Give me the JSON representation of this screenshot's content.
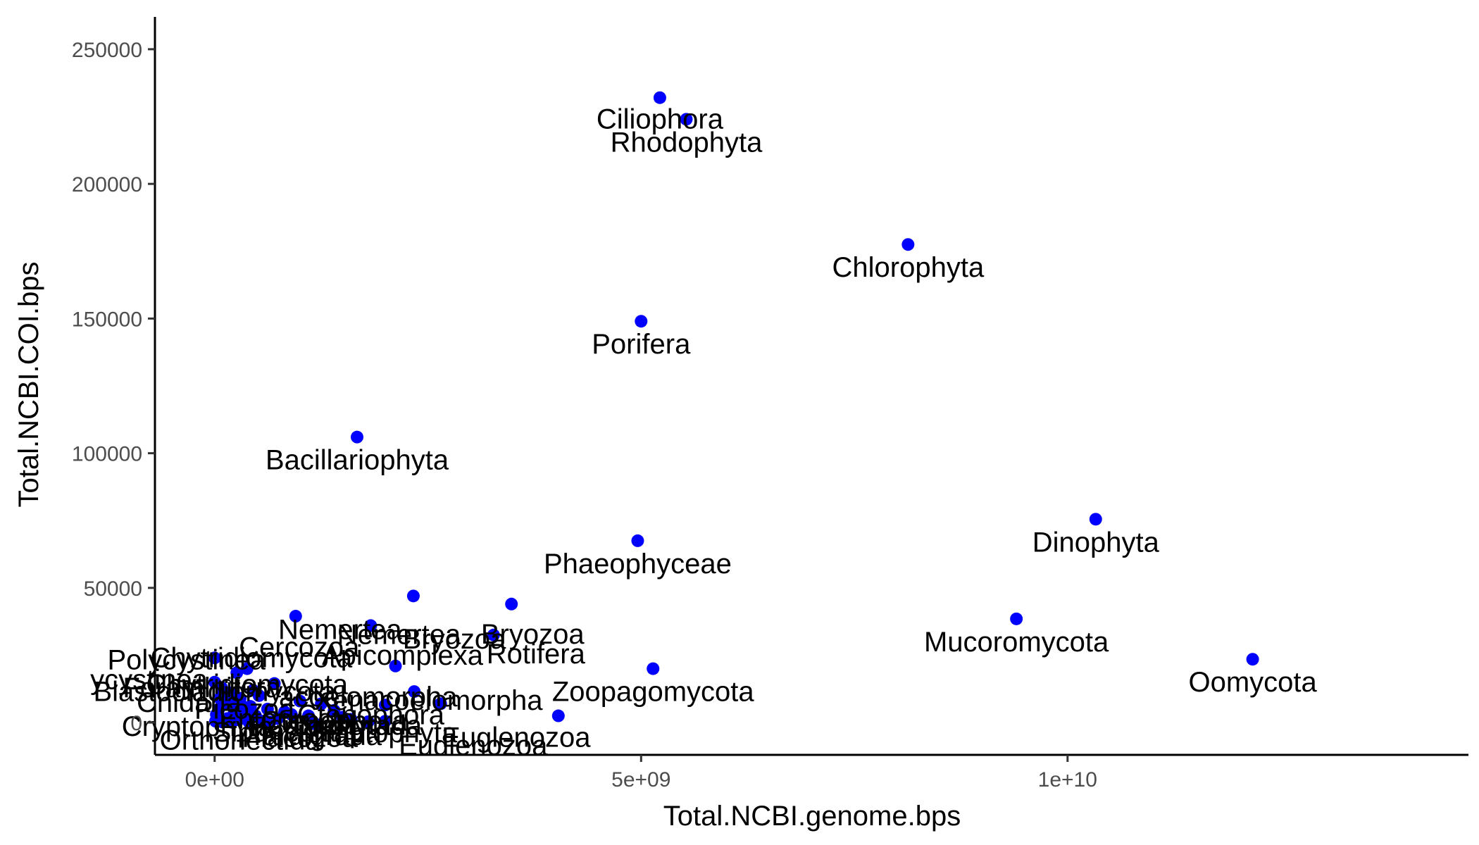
{
  "chart_data": {
    "type": "scatter",
    "title": "",
    "xlabel": "Total.NCBI.genome.bps",
    "ylabel": "Total.NCBI.COI.bps",
    "xlim": [
      -700000000,
      14700000000
    ],
    "ylim": [
      -12000,
      262000
    ],
    "x_ticks": [
      0,
      5000000000,
      10000000000
    ],
    "x_tick_labels": [
      "0e+00",
      "5e+09",
      "1e+10"
    ],
    "y_ticks": [
      0,
      50000,
      100000,
      150000,
      200000,
      250000
    ],
    "y_tick_labels": [
      "0",
      "50000",
      "100000",
      "150000",
      "200000",
      "250000"
    ],
    "grid": false,
    "legend": "none",
    "point_color": "#0000ff",
    "labeled_points": [
      {
        "label": "Ciliophora",
        "x": 5220000000,
        "y": 232000
      },
      {
        "label": "Rhodophyta",
        "x": 5530000000,
        "y": 224000
      },
      {
        "label": "Chlorophyta",
        "x": 8130000000,
        "y": 177500
      },
      {
        "label": "Porifera",
        "x": 5000000000,
        "y": 149000
      },
      {
        "label": "Bacillariophyta",
        "x": 1670000000,
        "y": 106000
      },
      {
        "label": "Dinophyta",
        "x": 10330000000,
        "y": 75500
      },
      {
        "label": "Phaeophyceae",
        "x": 4960000000,
        "y": 67500
      },
      {
        "label": "Mucoromycota",
        "x": 9400000000,
        "y": 38500
      },
      {
        "label": "Bryozoa",
        "x": 3480000000,
        "y": 44000
      },
      {
        "label": "Nemertea",
        "x": 1830000000,
        "y": 36000
      },
      {
        "label": "Rotifera",
        "x": 3270000000,
        "y": 32500
      },
      {
        "label": "Oomycota",
        "x": 12170000000,
        "y": 23500
      },
      {
        "label": "Zoopagomycota",
        "x": 5140000000,
        "y": 20000
      },
      {
        "label": "Cercozoa",
        "x": 0,
        "y": 24000
      },
      {
        "label": "Apicomplexa",
        "x": 2120000000,
        "y": 21000
      },
      {
        "label": "Chytridiomycota",
        "x": 380000000,
        "y": 20000
      },
      {
        "label": "Xenacoelomorpha",
        "x": 2340000000,
        "y": 11500
      },
      {
        "label": "Euglenozoa",
        "x": 4030000000,
        "y": 2500
      },
      {
        "label": "Ctenophora",
        "x": 1500000000,
        "y": 2000
      },
      {
        "label": "Polycystinea",
        "x": 0,
        "y": 15000
      },
      {
        "label": "Tardigrada",
        "x": 1180000000,
        "y": -500
      },
      {
        "label": "Haptophyta",
        "x": 2000000000,
        "y": 500
      }
    ],
    "extra_points": [
      {
        "x": 950000000,
        "y": 39500
      },
      {
        "x": 2330000000,
        "y": 47000
      },
      {
        "x": 260000000,
        "y": 18500
      },
      {
        "x": 700000000,
        "y": 14500
      },
      {
        "x": 2650000000,
        "y": 7000
      },
      {
        "x": 2000000000,
        "y": 6500
      },
      {
        "x": 80000000,
        "y": 13000
      },
      {
        "x": 180000000,
        "y": 11000
      },
      {
        "x": 300000000,
        "y": 9000
      },
      {
        "x": 520000000,
        "y": 10000
      },
      {
        "x": 1000000000,
        "y": 8000
      },
      {
        "x": 1250000000,
        "y": 7000
      },
      {
        "x": 120000000,
        "y": 7000
      },
      {
        "x": 420000000,
        "y": 6000
      },
      {
        "x": 620000000,
        "y": 5000
      },
      {
        "x": 820000000,
        "y": 4000
      },
      {
        "x": 50000000,
        "y": 5000
      },
      {
        "x": 230000000,
        "y": 4000
      },
      {
        "x": 360000000,
        "y": 3000
      },
      {
        "x": 480000000,
        "y": 2500
      },
      {
        "x": 900000000,
        "y": 3000
      },
      {
        "x": 1400000000,
        "y": 4500
      },
      {
        "x": 30000000,
        "y": 2000
      },
      {
        "x": 150000000,
        "y": 1500
      },
      {
        "x": 280000000,
        "y": 1000
      },
      {
        "x": 560000000,
        "y": 500
      },
      {
        "x": 740000000,
        "y": 1500
      },
      {
        "x": 1100000000,
        "y": 2500
      },
      {
        "x": 10000000,
        "y": 500
      },
      {
        "x": 90000000,
        "y": 200
      },
      {
        "x": 200000000,
        "y": 100
      },
      {
        "x": 400000000,
        "y": 300
      },
      {
        "x": 650000000,
        "y": 200
      },
      {
        "x": 1600000000,
        "y": 1200
      },
      {
        "x": 1800000000,
        "y": 300
      },
      {
        "x": 20000000,
        "y": 3000
      },
      {
        "x": 330000000,
        "y": 6000
      },
      {
        "x": 60000000,
        "y": 9000
      },
      {
        "x": 250000000,
        "y": 8000
      },
      {
        "x": 450000000,
        "y": 12000
      }
    ],
    "clutter_labels": [
      {
        "text": "ycystinea",
        "x": -770000000,
        "y": 12500
      },
      {
        "text": "Chytridiomycota",
        "x": 430000000,
        "y": 20500
      },
      {
        "text": "Nemertea",
        "x": 1470000000,
        "y": 31000
      },
      {
        "text": "Bryozoa",
        "x": 2810000000,
        "y": 27500
      },
      {
        "text": "acoelomorpha",
        "x": 1800000000,
        "y": 6000
      },
      {
        "text": "Ctenophora",
        "x": 1400000000,
        "y": -3000
      },
      {
        "text": "Haptophyta",
        "x": 1230000000,
        "y": -4500
      },
      {
        "text": "Tardigrada",
        "x": 1650000000,
        "y": -4500
      },
      {
        "text": "Euglenozoa",
        "x": 3030000000,
        "y": -12000
      },
      {
        "text": "Sipuncula",
        "x": 700000000,
        "y": -7000
      },
      {
        "text": "Placozoa",
        "x": 1000000000,
        "y": -9000
      },
      {
        "text": "Cnidaria",
        "x": -300000000,
        "y": 4000
      },
      {
        "text": "Picozoa",
        "x": 350000000,
        "y": 1500
      },
      {
        "text": "Cryptophyta",
        "x": -200000000,
        "y": -5000
      },
      {
        "text": "Orthonectida",
        "x": 300000000,
        "y": -10000
      },
      {
        "text": "Blastocladiomycota",
        "x": 0,
        "y": 8000
      },
      {
        "text": "Entoprocta",
        "x": 850000000,
        "y": -2000
      },
      {
        "text": "Foraminifera",
        "x": -150000000,
        "y": 9500
      }
    ]
  }
}
